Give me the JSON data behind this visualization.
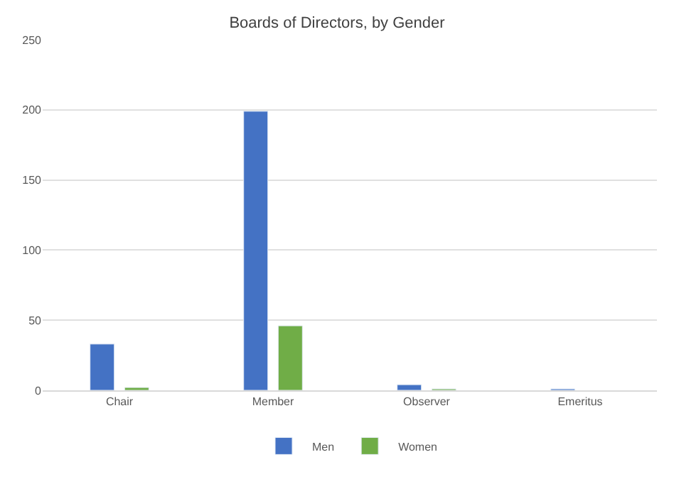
{
  "chart_data": {
    "type": "bar",
    "title": "Boards of Directors, by Gender",
    "categories": [
      "Chair",
      "Member",
      "Observer",
      "Emeritus"
    ],
    "series": [
      {
        "name": "Men",
        "color": "#4472c4",
        "values": [
          33,
          199,
          4,
          1
        ]
      },
      {
        "name": "Women",
        "color": "#70ad47",
        "values": [
          2,
          46,
          1,
          null
        ]
      }
    ],
    "ylim": [
      0,
      250
    ],
    "yticks": [
      0,
      50,
      100,
      150,
      200,
      250
    ],
    "grid": "y",
    "legend": "bottom"
  }
}
